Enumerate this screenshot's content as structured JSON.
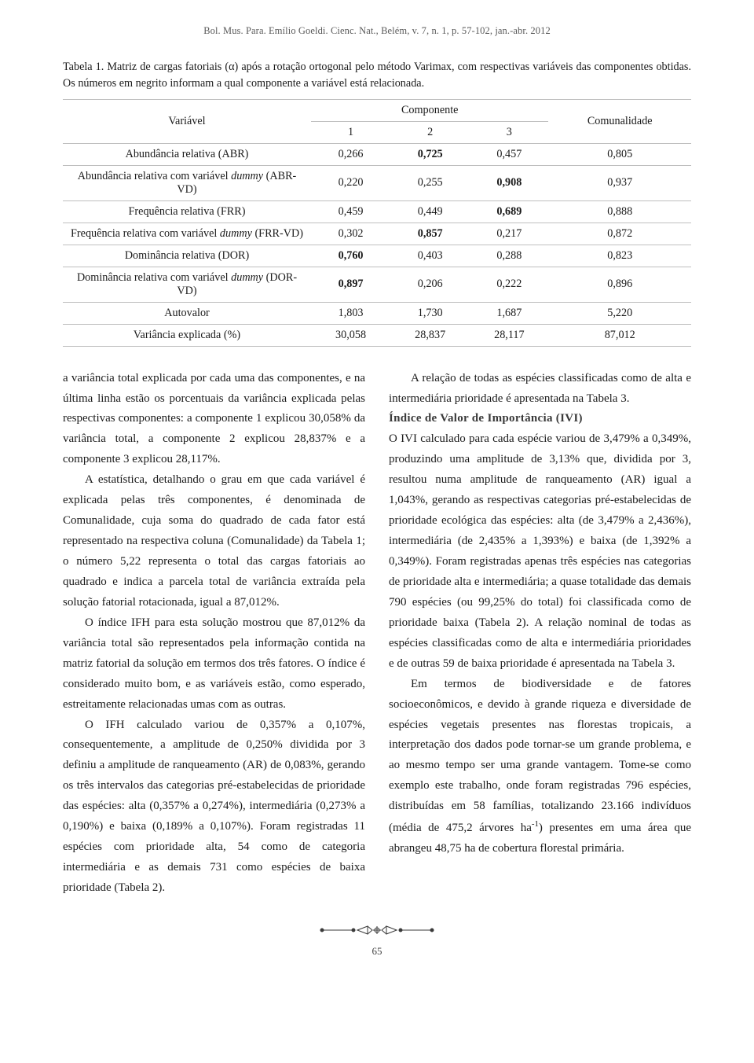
{
  "running_head": "Bol. Mus. Para. Emílio Goeldi. Cienc. Nat., Belém, v. 7, n. 1, p. 57-102, jan.-abr. 2012",
  "table_caption": "Tabela 1. Matriz de cargas fatoriais (α) após a rotação ortogonal pelo método Varimax, com respectivas variáveis das componentes obtidas. Os números em negrito informam a qual componente a variável está relacionada.",
  "table": {
    "header": {
      "var": "Variável",
      "comp": "Componente",
      "c1": "1",
      "c2": "2",
      "c3": "3",
      "com": "Comunalidade"
    },
    "rows": [
      {
        "var": "Abundância relativa (ABR)",
        "c1": "0,266",
        "c2": "0,725",
        "c3": "0,457",
        "com": "0,805",
        "bold": 2
      },
      {
        "var": "Abundância relativa com variável <i>dummy</i> (ABR-VD)",
        "c1": "0,220",
        "c2": "0,255",
        "c3": "0,908",
        "com": "0,937",
        "bold": 3
      },
      {
        "var": "Frequência relativa (FRR)",
        "c1": "0,459",
        "c2": "0,449",
        "c3": "0,689",
        "com": "0,888",
        "bold": 3
      },
      {
        "var": "Frequência relativa com variável <i>dummy</i> (FRR-VD)",
        "c1": "0,302",
        "c2": "0,857",
        "c3": "0,217",
        "com": "0,872",
        "bold": 2
      },
      {
        "var": "Dominância relativa (DOR)",
        "c1": "0,760",
        "c2": "0,403",
        "c3": "0,288",
        "com": "0,823",
        "bold": 1
      },
      {
        "var": "Dominância relativa com variável <i>dummy</i> (DOR-VD)",
        "c1": "0,897",
        "c2": "0,206",
        "c3": "0,222",
        "com": "0,896",
        "bold": 1
      },
      {
        "var": "Autovalor",
        "c1": "1,803",
        "c2": "1,730",
        "c3": "1,687",
        "com": "5,220",
        "bold": 0
      },
      {
        "var": "Variância explicada (%)",
        "c1": "30,058",
        "c2": "28,837",
        "c3": "28,117",
        "com": "87,012",
        "bold": 0
      }
    ]
  },
  "left_col": {
    "p1": "a variância total explicada por cada uma das componentes, e na última linha estão os porcentuais da variância explicada pelas respectivas componentes: a componente 1 explicou 30,058% da variância total, a componente 2 explicou 28,837% e a componente 3 explicou 28,117%.",
    "p2": "A estatística, detalhando o grau em que cada variável é explicada pelas três componentes, é denominada de Comunalidade, cuja soma do quadrado de cada fator está representado na respectiva coluna (Comunalidade) da Tabela 1; o número 5,22 representa o total das cargas fatoriais ao quadrado e indica a parcela total de variância extraída pela solução fatorial rotacionada, igual a 87,012%.",
    "p3": "O índice IFH para esta solução mostrou que 87,012% da variância total são representados pela informação contida na matriz fatorial da solução em termos dos três fatores. O índice é considerado muito bom, e as variáveis estão, como esperado, estreitamente relacionadas umas com as outras.",
    "p4": "O IFH calculado variou de 0,357% a 0,107%, consequentemente, a amplitude de 0,250% dividida por 3 definiu a amplitude de ranqueamento (AR) de 0,083%, gerando os três intervalos das categorias pré-estabelecidas de prioridade das espécies: alta (0,357% a 0,274%), intermediária (0,273% a 0,190%) e baixa (0,189% a 0,107%). Foram registradas 11 espécies com prioridade alta, 54 como de categoria intermediária e as demais 731 como espécies de baixa prioridade (Tabela 2)."
  },
  "right_col": {
    "p1": "A relação de todas as espécies classificadas como de alta e intermediária prioridade é apresentada na Tabela 3.",
    "section_head": "Índice de Valor de Importância (IVI)",
    "p2": "O IVI calculado para cada espécie variou de 3,479% a 0,349%, produzindo uma amplitude de 3,13% que, dividida por 3, resultou numa amplitude de ranqueamento (AR) igual a 1,043%, gerando as respectivas categorias pré-estabelecidas de prioridade ecológica das espécies: alta (de 3,479% a 2,436%), intermediária (de 2,435% a 1,393%) e baixa (de 1,392% a 0,349%). Foram registradas apenas três espécies nas categorias de prioridade alta e intermediária; a quase totalidade das demais 790 espécies (ou 99,25% do total) foi classificada como de prioridade baixa (Tabela 2). A relação nominal de todas as espécies classificadas como de alta e intermediária prioridades e de outras 59 de baixa prioridade é apresentada na Tabela 3.",
    "p3_html": "Em termos de biodiversidade e de fatores socioeconômicos, e devido à grande riqueza e diversidade de espécies vegetais presentes nas florestas tropicais, a interpretação dos dados pode tornar-se um grande problema, e ao mesmo tempo ser uma grande vantagem. Tome-se como exemplo este trabalho, onde foram registradas 796 espécies, distribuídas em 58 famílias, totalizando 23.166 indivíduos (média de 475,2 árvores ha<sup>-1</sup>) presentes em uma área que abrangeu 48,75 ha de cobertura florestal primária."
  },
  "page_number": "65",
  "colors": {
    "text": "#1a1a1a",
    "muted": "#5a5a5a",
    "border": "#bfbfbf",
    "background": "#ffffff"
  }
}
